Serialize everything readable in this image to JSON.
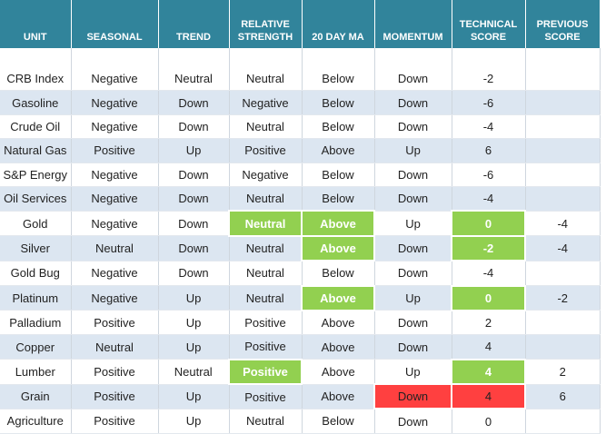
{
  "table": {
    "columns": [
      "UNIT",
      "SEASONAL",
      "TREND",
      "RELATIVE STRENGTH",
      "20 DAY MA",
      "MOMENTUM",
      "TECHNICAL SCORE",
      "PREVIOUS SCORE"
    ],
    "rows": [
      [
        "CRB Index",
        "Negative",
        "Neutral",
        "Neutral",
        "Below",
        "Down",
        "-2",
        null
      ],
      [
        "Gasoline",
        "Negative",
        "Down",
        "Negative",
        "Below",
        "Down",
        "-6",
        null
      ],
      [
        "Crude Oil",
        "Negative",
        "Down",
        "Neutral",
        "Below",
        "Down",
        "-4",
        null
      ],
      [
        "Natural Gas",
        "Positive",
        "Up",
        "Positive",
        "Above",
        "Up",
        "6",
        null
      ],
      [
        "S&P Energy",
        "Negative",
        "Down",
        "Negative",
        "Below",
        "Down",
        "-6",
        null
      ],
      [
        "Oil Services",
        "Negative",
        "Down",
        "Neutral",
        "Below",
        "Down",
        "-4",
        null
      ],
      [
        "Gold",
        "Negative",
        "Down",
        "Neutral",
        "Above",
        "Up",
        "0",
        "-4"
      ],
      [
        "Silver",
        "Neutral",
        "Down",
        "Neutral",
        "Above",
        "Down",
        "-2",
        "-4"
      ],
      [
        "Gold Bug",
        "Negative",
        "Down",
        "Neutral",
        "Below",
        "Down",
        "-4",
        null
      ],
      [
        "Platinum",
        "Negative",
        "Up",
        "Neutral",
        "Above",
        "Up",
        "0",
        "-2"
      ],
      [
        "Palladium",
        "Positive",
        "Up",
        "Positive",
        "Above",
        "Down",
        "2",
        null
      ],
      [
        "Copper",
        "Neutral",
        "Up",
        "Positive",
        "Above",
        "Down",
        "4",
        null
      ],
      [
        "Lumber",
        "Positive",
        "Neutral",
        "Positive",
        "Above",
        "Up",
        "4",
        "2"
      ],
      [
        "Grain",
        "Positive",
        "Up",
        "Positive",
        "Above",
        "Down",
        "4",
        "6"
      ],
      [
        "Agriculture",
        "Positive",
        "Up",
        "Neutral",
        "Below",
        "Down",
        "0",
        null
      ]
    ]
  }
}
